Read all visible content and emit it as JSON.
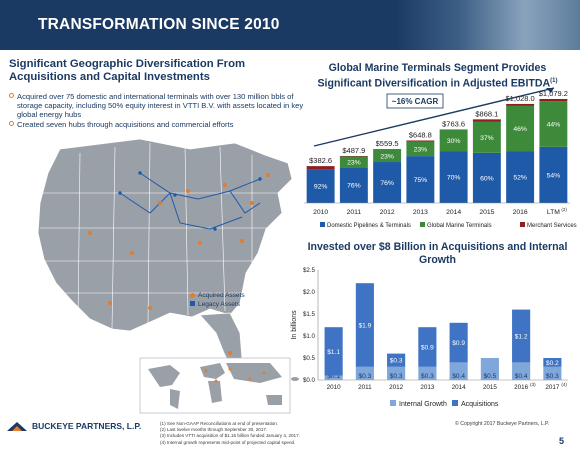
{
  "header": {
    "title": "TRANSFORMATION SINCE 2010"
  },
  "left": {
    "title": "Significant Geographic Diversification From Acquisitions and Capital Investments",
    "bullets": [
      "Acquired over 75 domestic and international terminals with over 130 million bbls of storage capacity, including 50% equity interest in VTTI B.V. with assets located in key global energy hubs",
      "Created seven hubs through acquisitions and commercial efforts"
    ],
    "map_legend": {
      "acquired": "Acquired Assets",
      "legacy": "Legacy Assets"
    }
  },
  "colors": {
    "navy": "#1b3a63",
    "blue": "#1f5aa8",
    "green": "#3e8a3b",
    "red": "#8f1e1e",
    "orange": "#e27c2f",
    "lightblue": "#7fa7dc",
    "midblue": "#3f73c4"
  },
  "chart_data": [
    {
      "type": "bar",
      "stacked": true,
      "title": "Global Marine Terminals Segment Provides Significant Diversification in Adjusted EBITDA",
      "title_footnote": "(1)",
      "annotation": "~16% CAGR",
      "categories": [
        "2010",
        "2011",
        "2012",
        "2013",
        "2014",
        "2015",
        "2016",
        "LTM"
      ],
      "category_footnotes": [
        "",
        "",
        "",
        "",
        "",
        "",
        "",
        "(2)"
      ],
      "totals": [
        382.6,
        487.9,
        559.5,
        648.8,
        763.6,
        868.1,
        1028.0,
        1079.2
      ],
      "total_labels": [
        "$382.6",
        "$487.9",
        "$559.5",
        "$648.8",
        "$763.6",
        "$868.1",
        "$1,028.0",
        "$1,079.2"
      ],
      "series": [
        {
          "name": "Domestic Pipelines & Terminals",
          "percent": [
            92,
            76,
            76,
            75,
            70,
            60,
            52,
            54
          ],
          "labels": [
            "92%",
            "76%",
            "76%",
            "75%",
            "70%",
            "60%",
            "52%",
            "54%"
          ],
          "color": "#1f5aa8"
        },
        {
          "name": "Global Marine Terminals",
          "percent": [
            0,
            23,
            23,
            23,
            30,
            37,
            46,
            44
          ],
          "labels": [
            "",
            "23%",
            "23%",
            "23%",
            "30%",
            "37%",
            "46%",
            "44%"
          ],
          "color": "#3e8a3b"
        },
        {
          "name": "Merchant Services",
          "percent": [
            8,
            1,
            1,
            2,
            0,
            3,
            2,
            2
          ],
          "labels": [
            "",
            "",
            "",
            "",
            "",
            "",
            "",
            ""
          ],
          "color": "#8f1e1e"
        }
      ],
      "legend_position": "bottom"
    },
    {
      "type": "bar",
      "stacked": true,
      "title": "Invested over $8 Billion in Acquisitions and Internal Growth",
      "ylabel": "In billions",
      "ylim": [
        0,
        2.5
      ],
      "yticks": [
        "$0.0",
        "$0.5",
        "$1.0",
        "$1.5",
        "$2.0",
        "$2.5"
      ],
      "categories": [
        "2010",
        "2011",
        "2012",
        "2013",
        "2014",
        "2015",
        "2016",
        "2017"
      ],
      "category_footnotes": [
        "",
        "",
        "",
        "",
        "",
        "",
        "(3)",
        "(4)"
      ],
      "series": [
        {
          "name": "Internal Growth",
          "values": [
            0.1,
            0.3,
            0.3,
            0.3,
            0.4,
            0.5,
            0.4,
            0.3
          ],
          "labels": [
            "$0.1",
            "$0.3",
            "$0.3",
            "$0.3",
            "$0.4",
            "$0.5",
            "$0.4",
            "$0.3"
          ],
          "color": "#7fa7dc"
        },
        {
          "name": "Acquisitions",
          "values": [
            1.1,
            1.9,
            0.3,
            0.9,
            0.9,
            0.0,
            1.2,
            0.2
          ],
          "labels": [
            "$1.1",
            "$1.9",
            "$0.3",
            "$0.9",
            "$0.9",
            "",
            "$1.2",
            "$0.2"
          ],
          "color": "#3f73c4"
        }
      ],
      "legend_position": "bottom"
    }
  ],
  "footer": {
    "logo_text": "BUCKEYE PARTNERS, L.P.",
    "footnotes": [
      "(1)   See Non-GAAP Reconciliations at end of presentation.",
      "(2)   Last twelve months through September 30, 2017.",
      "(3)   Includes VTTI acquisition of $1.15 billion funded January 4, 2017.",
      "(4)   Internal growth represents mid-point of projected capital spend."
    ],
    "copyright": "© Copyright 2017 Buckeye Partners, L.P.",
    "page_number": "5"
  }
}
